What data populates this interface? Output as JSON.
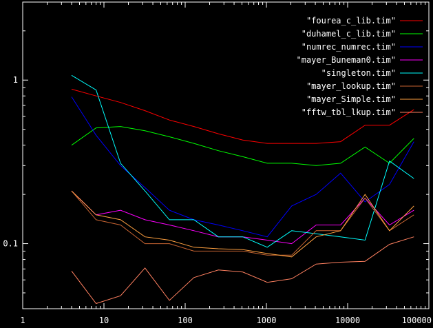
{
  "chart_data": {
    "type": "line",
    "title": "",
    "xlabel": "",
    "ylabel": "",
    "xscale": "log",
    "yscale": "log",
    "xlim": [
      1,
      100000
    ],
    "ylim": [
      0.04,
      3.0
    ],
    "grid": false,
    "legend_position": "top-right",
    "x_ticks": [
      {
        "value": 1,
        "label": "1"
      },
      {
        "value": 10,
        "label": "10"
      },
      {
        "value": 100,
        "label": "100"
      },
      {
        "value": 1000,
        "label": "1000"
      },
      {
        "value": 10000,
        "label": "10000"
      },
      {
        "value": 100000,
        "label": "100000"
      }
    ],
    "y_ticks": [
      {
        "value": 1,
        "label": "1"
      },
      {
        "value": 0.1,
        "label": "0.1"
      }
    ],
    "x": [
      4,
      8,
      16,
      32,
      64,
      128,
      256,
      512,
      1024,
      2048,
      4096,
      8192,
      16384,
      32768,
      65536
    ],
    "series": [
      {
        "name": "\"fourea_c_lib.tim\"",
        "color": "#ff0000",
        "values": [
          0.88,
          0.8,
          0.73,
          0.65,
          0.57,
          0.52,
          0.47,
          0.43,
          0.41,
          0.41,
          0.41,
          0.42,
          0.53,
          0.53,
          0.66
        ]
      },
      {
        "name": "\"duhamel_c_lib.tim\"",
        "color": "#00ff00",
        "values": [
          0.4,
          0.51,
          0.52,
          0.49,
          0.45,
          0.41,
          0.37,
          0.34,
          0.31,
          0.31,
          0.3,
          0.31,
          0.39,
          0.31,
          0.44
        ]
      },
      {
        "name": "\"numrec_numrec.tim\"",
        "color": "#0000ff",
        "values": [
          0.79,
          0.46,
          0.3,
          0.22,
          0.16,
          0.14,
          0.13,
          0.12,
          0.11,
          0.17,
          0.2,
          0.27,
          0.18,
          0.23,
          0.42
        ]
      },
      {
        "name": "\"mayer_Buneman0.tim\"",
        "color": "#ff00ff",
        "values": [
          0.21,
          0.15,
          0.16,
          0.14,
          0.13,
          0.12,
          0.11,
          0.11,
          0.105,
          0.1,
          0.13,
          0.13,
          0.19,
          0.13,
          0.16
        ]
      },
      {
        "name": "\"singleton.tim\"",
        "color": "#00ffff",
        "values": [
          1.07,
          0.87,
          0.31,
          0.21,
          0.14,
          0.14,
          0.11,
          0.11,
          0.095,
          0.12,
          0.115,
          0.11,
          0.105,
          0.32,
          0.25
        ]
      },
      {
        "name": "\"mayer_lookup.tim\"",
        "color": "#c86432",
        "values": [
          0.21,
          0.14,
          0.13,
          0.1,
          0.1,
          0.09,
          0.09,
          0.09,
          0.085,
          0.085,
          0.12,
          0.12,
          0.19,
          0.12,
          0.15
        ]
      },
      {
        "name": "\"mayer_Simple.tim\"",
        "color": "#ffa040",
        "values": [
          0.21,
          0.15,
          0.14,
          0.11,
          0.105,
          0.095,
          0.093,
          0.092,
          0.087,
          0.083,
          0.11,
          0.12,
          0.2,
          0.12,
          0.17
        ]
      },
      {
        "name": "\"fftw_tbl_lkup.tim\"",
        "color": "#ff8060",
        "values": [
          0.068,
          0.043,
          0.048,
          0.071,
          0.045,
          0.062,
          0.069,
          0.067,
          0.058,
          0.061,
          0.075,
          0.077,
          0.078,
          0.099,
          0.11
        ]
      }
    ]
  }
}
